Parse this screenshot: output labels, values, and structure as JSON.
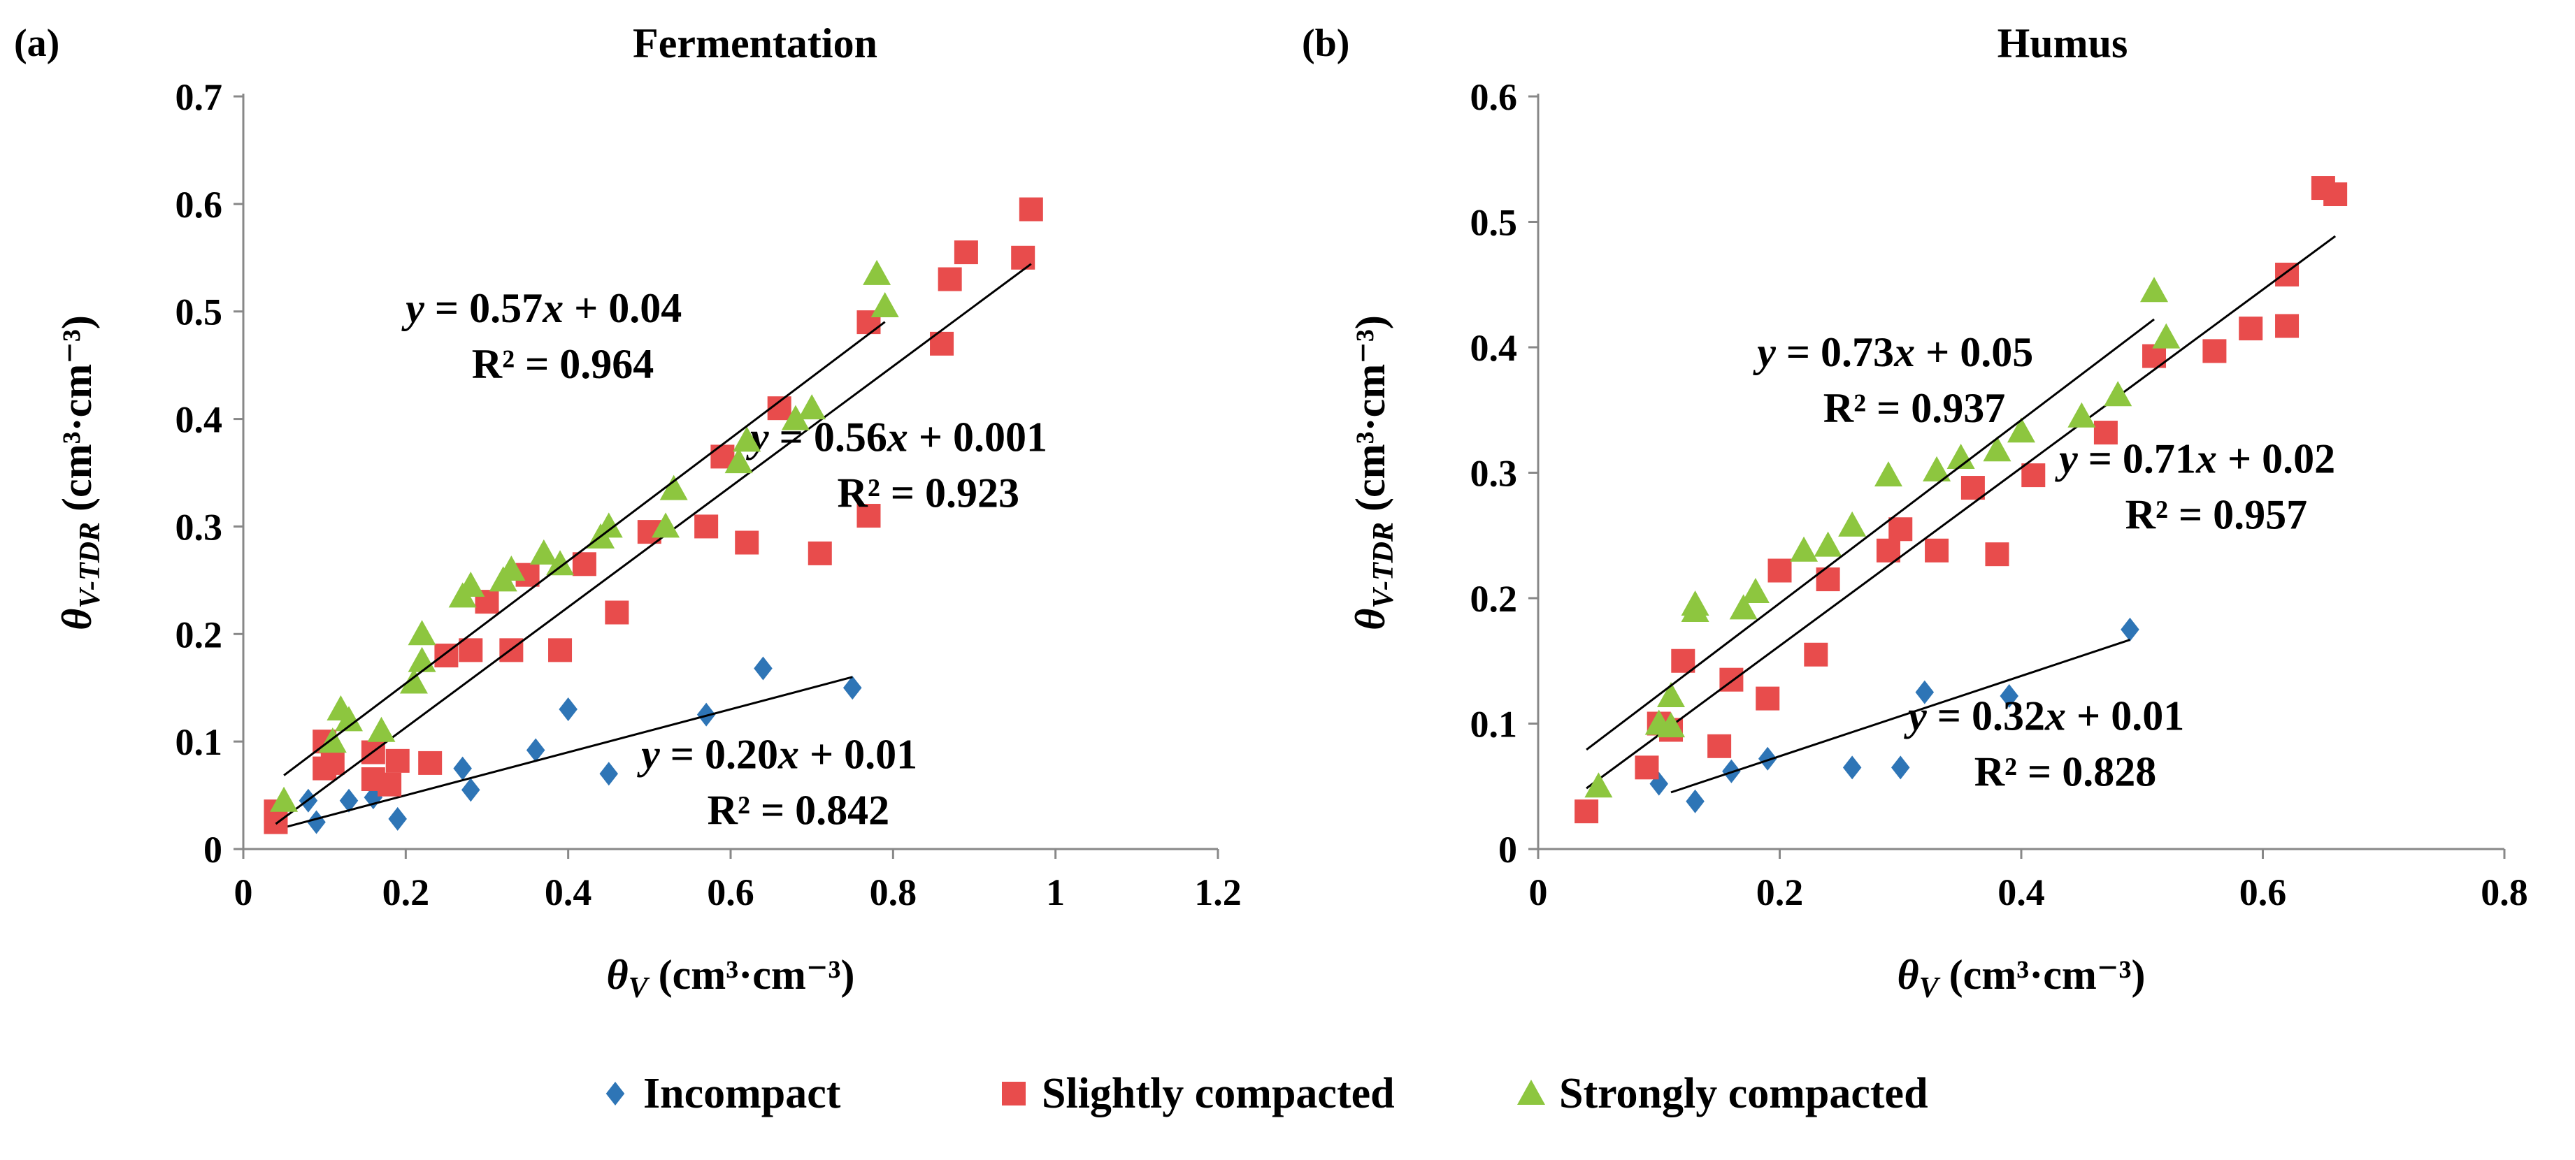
{
  "chart_data": [
    {
      "type": "scatter",
      "panel_label": "(a)",
      "title": "Fermentation",
      "xlabel": "θV (cm³·cm⁻³)",
      "ylabel": "θV-TDR (cm³·cm⁻³)",
      "xlim": [
        0,
        1.2
      ],
      "ylim": [
        0,
        0.7
      ],
      "xticks": [
        0,
        0.2,
        0.4,
        0.6,
        0.8,
        1,
        1.2
      ],
      "xtick_labels": [
        "0",
        "0.2",
        "0.4",
        "0.6",
        "0.8",
        "1",
        "1.2"
      ],
      "yticks": [
        0,
        0.1,
        0.2,
        0.3,
        0.4,
        0.5,
        0.6,
        0.7
      ],
      "ytick_labels": [
        "0",
        "0.1",
        "0.2",
        "0.3",
        "0.4",
        "0.5",
        "0.6",
        "0.7"
      ],
      "series": [
        {
          "name": "Incompact",
          "color": "#2E75B6",
          "marker": "diamond",
          "fit": {
            "slope": 0.2,
            "intercept": 0.01,
            "r2": 0.842,
            "x_range": [
              0.05,
              0.75
            ],
            "equation": "y = 0.20x + 0.01",
            "r2_text": "R² = 0.842",
            "label_anchor": [
              0.83,
              0.075
            ]
          },
          "points": [
            [
              0.04,
              0.03
            ],
            [
              0.08,
              0.045
            ],
            [
              0.09,
              0.025
            ],
            [
              0.13,
              0.045
            ],
            [
              0.16,
              0.048
            ],
            [
              0.19,
              0.028
            ],
            [
              0.27,
              0.075
            ],
            [
              0.28,
              0.055
            ],
            [
              0.36,
              0.092
            ],
            [
              0.4,
              0.13
            ],
            [
              0.45,
              0.07
            ],
            [
              0.57,
              0.125
            ],
            [
              0.64,
              0.168
            ],
            [
              0.75,
              0.15
            ]
          ]
        },
        {
          "name": "Slightly compacted",
          "color": "#E84C4C",
          "marker": "square",
          "fit": {
            "slope": 0.56,
            "intercept": 0.001,
            "r2": 0.923,
            "x_range": [
              0.04,
              0.97
            ],
            "equation": "y = 0.56x + 0.001",
            "r2_text": "R² = 0.923",
            "label_anchor": [
              0.99,
              0.37
            ]
          },
          "points": [
            [
              0.04,
              0.025
            ],
            [
              0.04,
              0.035
            ],
            [
              0.1,
              0.1
            ],
            [
              0.1,
              0.075
            ],
            [
              0.11,
              0.08
            ],
            [
              0.16,
              0.09
            ],
            [
              0.16,
              0.065
            ],
            [
              0.18,
              0.06
            ],
            [
              0.19,
              0.082
            ],
            [
              0.23,
              0.08
            ],
            [
              0.25,
              0.18
            ],
            [
              0.28,
              0.185
            ],
            [
              0.3,
              0.23
            ],
            [
              0.33,
              0.185
            ],
            [
              0.35,
              0.255
            ],
            [
              0.39,
              0.185
            ],
            [
              0.42,
              0.265
            ],
            [
              0.46,
              0.22
            ],
            [
              0.5,
              0.295
            ],
            [
              0.57,
              0.3
            ],
            [
              0.59,
              0.365
            ],
            [
              0.62,
              0.285
            ],
            [
              0.66,
              0.41
            ],
            [
              0.71,
              0.275
            ],
            [
              0.77,
              0.31
            ],
            [
              0.77,
              0.49
            ],
            [
              0.86,
              0.47
            ],
            [
              0.87,
              0.53
            ],
            [
              0.89,
              0.555
            ],
            [
              0.96,
              0.55
            ],
            [
              0.97,
              0.595
            ]
          ]
        },
        {
          "name": "Strongly compacted",
          "color": "#8DC63F",
          "marker": "triangle",
          "fit": {
            "slope": 0.57,
            "intercept": 0.04,
            "r2": 0.964,
            "x_range": [
              0.05,
              0.79
            ],
            "equation": "y = 0.57x + 0.04",
            "r2_text": "R² = 0.964",
            "label_anchor": [
              0.54,
              0.49
            ]
          },
          "points": [
            [
              0.05,
              0.045
            ],
            [
              0.11,
              0.1
            ],
            [
              0.12,
              0.13
            ],
            [
              0.13,
              0.12
            ],
            [
              0.17,
              0.11
            ],
            [
              0.21,
              0.155
            ],
            [
              0.22,
              0.175
            ],
            [
              0.22,
              0.2
            ],
            [
              0.27,
              0.235
            ],
            [
              0.28,
              0.245
            ],
            [
              0.32,
              0.25
            ],
            [
              0.33,
              0.26
            ],
            [
              0.37,
              0.275
            ],
            [
              0.39,
              0.265
            ],
            [
              0.44,
              0.29
            ],
            [
              0.45,
              0.3
            ],
            [
              0.52,
              0.3
            ],
            [
              0.53,
              0.335
            ],
            [
              0.61,
              0.36
            ],
            [
              0.62,
              0.38
            ],
            [
              0.68,
              0.4
            ],
            [
              0.7,
              0.41
            ],
            [
              0.78,
              0.535
            ],
            [
              0.79,
              0.505
            ]
          ]
        }
      ]
    },
    {
      "type": "scatter",
      "panel_label": "(b)",
      "title": "Humus",
      "xlabel": "θV (cm³·cm⁻³)",
      "ylabel": "θV-TDR (cm³·cm⁻³)",
      "xlim": [
        0,
        0.8
      ],
      "ylim": [
        0,
        0.6
      ],
      "xticks": [
        0,
        0.2,
        0.4,
        0.6,
        0.8
      ],
      "xtick_labels": [
        "0",
        "0.2",
        "0.4",
        "0.6",
        "0.8"
      ],
      "yticks": [
        0,
        0.1,
        0.2,
        0.3,
        0.4,
        0.5,
        0.6
      ],
      "ytick_labels": [
        "0",
        "0.1",
        "0.2",
        "0.3",
        "0.4",
        "0.5",
        "0.6"
      ],
      "series": [
        {
          "name": "Incompact",
          "color": "#2E75B6",
          "marker": "diamond",
          "fit": {
            "slope": 0.32,
            "intercept": 0.01,
            "r2": 0.828,
            "x_range": [
              0.11,
              0.49
            ],
            "equation": "y = 0.32x + 0.01",
            "r2_text": "R² = 0.828",
            "label_anchor": [
              0.535,
              0.095
            ]
          },
          "points": [
            [
              0.1,
              0.052
            ],
            [
              0.13,
              0.038
            ],
            [
              0.16,
              0.062
            ],
            [
              0.19,
              0.072
            ],
            [
              0.26,
              0.065
            ],
            [
              0.3,
              0.065
            ],
            [
              0.32,
              0.125
            ],
            [
              0.39,
              0.122
            ],
            [
              0.49,
              0.175
            ]
          ]
        },
        {
          "name": "Slightly compacted",
          "color": "#E84C4C",
          "marker": "square",
          "fit": {
            "slope": 0.71,
            "intercept": 0.02,
            "r2": 0.957,
            "x_range": [
              0.04,
              0.66
            ],
            "equation": "y = 0.71x + 0.02",
            "r2_text": "R² = 0.957",
            "label_anchor": [
              0.66,
              0.3
            ]
          },
          "points": [
            [
              0.04,
              0.03
            ],
            [
              0.09,
              0.065
            ],
            [
              0.1,
              0.1
            ],
            [
              0.11,
              0.095
            ],
            [
              0.12,
              0.15
            ],
            [
              0.15,
              0.082
            ],
            [
              0.16,
              0.135
            ],
            [
              0.19,
              0.12
            ],
            [
              0.2,
              0.222
            ],
            [
              0.23,
              0.155
            ],
            [
              0.24,
              0.215
            ],
            [
              0.29,
              0.238
            ],
            [
              0.3,
              0.255
            ],
            [
              0.33,
              0.238
            ],
            [
              0.36,
              0.288
            ],
            [
              0.38,
              0.235
            ],
            [
              0.41,
              0.298
            ],
            [
              0.47,
              0.332
            ],
            [
              0.51,
              0.393
            ],
            [
              0.56,
              0.397
            ],
            [
              0.59,
              0.415
            ],
            [
              0.62,
              0.417
            ],
            [
              0.62,
              0.458
            ],
            [
              0.65,
              0.527
            ],
            [
              0.66,
              0.522
            ]
          ]
        },
        {
          "name": "Strongly compacted",
          "color": "#8DC63F",
          "marker": "triangle",
          "fit": {
            "slope": 0.73,
            "intercept": 0.05,
            "r2": 0.937,
            "x_range": [
              0.04,
              0.51
            ],
            "equation": "y = 0.73x + 0.05",
            "r2_text": "R² = 0.937",
            "label_anchor": [
              0.41,
              0.385
            ]
          },
          "points": [
            [
              0.05,
              0.05
            ],
            [
              0.1,
              0.1
            ],
            [
              0.11,
              0.098
            ],
            [
              0.11,
              0.122
            ],
            [
              0.13,
              0.195
            ],
            [
              0.13,
              0.19
            ],
            [
              0.17,
              0.192
            ],
            [
              0.18,
              0.205
            ],
            [
              0.22,
              0.238
            ],
            [
              0.24,
              0.242
            ],
            [
              0.26,
              0.258
            ],
            [
              0.29,
              0.298
            ],
            [
              0.33,
              0.302
            ],
            [
              0.35,
              0.312
            ],
            [
              0.38,
              0.318
            ],
            [
              0.4,
              0.333
            ],
            [
              0.45,
              0.345
            ],
            [
              0.48,
              0.362
            ],
            [
              0.51,
              0.445
            ],
            [
              0.52,
              0.408
            ]
          ]
        }
      ]
    }
  ],
  "legend": {
    "position": "bottom-center",
    "items": [
      {
        "label": "Incompact",
        "color": "#2E75B6",
        "marker": "diamond"
      },
      {
        "label": "Slightly compacted",
        "color": "#E84C4C",
        "marker": "square"
      },
      {
        "label": "Strongly compacted",
        "color": "#8DC63F",
        "marker": "triangle"
      }
    ]
  }
}
